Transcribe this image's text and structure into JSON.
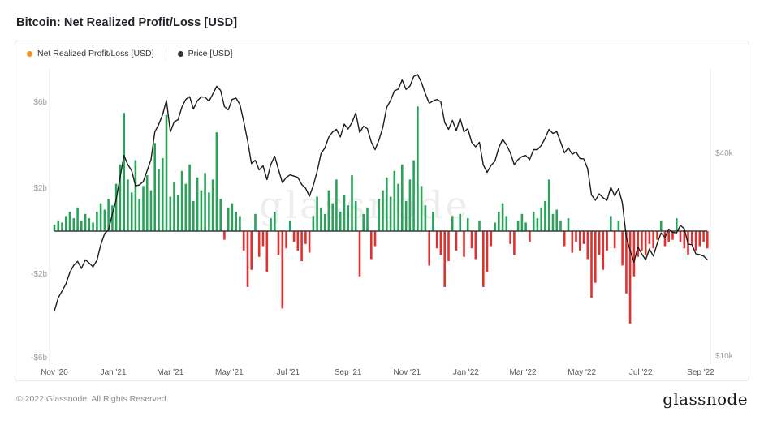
{
  "header": {
    "title": "Bitcoin: Net Realized Profit/Loss [USD]"
  },
  "legend": {
    "items": [
      {
        "label": "Net Realized Profit/Loss [USD]",
        "color": "#f7931a"
      },
      {
        "label": "Price [USD]",
        "color": "#333333"
      }
    ]
  },
  "watermark": "glassnode",
  "footer": {
    "copyright": "© 2022 Glassnode. All Rights Reserved.",
    "brand": "glassnode"
  },
  "chart_data": {
    "type": "mixed",
    "title": "Bitcoin: Net Realized Profit/Loss [USD]",
    "grid": false,
    "zero_line": true,
    "legend_position": "top-left",
    "start_date": "2020-11-01",
    "interval_days": 4,
    "left_axis": {
      "label": "Net Realized Profit/Loss",
      "unit": "billions USD",
      "ticks": [
        {
          "label": "$6b",
          "value": 6
        },
        {
          "label": "$2b",
          "value": 2
        },
        {
          "label": "-$2b",
          "value": -2
        },
        {
          "label": "-$6b",
          "value": -6
        }
      ]
    },
    "right_axis": {
      "label": "Price",
      "unit": "USD",
      "scale": "log",
      "ticks": [
        {
          "label": "$40k",
          "value": 40000
        },
        {
          "label": "$10k",
          "value": 10000
        }
      ]
    },
    "x_axis": {
      "ticks": [
        {
          "label": "Nov '20",
          "day": 0
        },
        {
          "label": "Jan '21",
          "day": 61
        },
        {
          "label": "Mar '21",
          "day": 120
        },
        {
          "label": "May '21",
          "day": 181
        },
        {
          "label": "Jul '21",
          "day": 242
        },
        {
          "label": "Sep '21",
          "day": 304
        },
        {
          "label": "Nov '21",
          "day": 365
        },
        {
          "label": "Jan '22",
          "day": 426
        },
        {
          "label": "Mar '22",
          "day": 485
        },
        {
          "label": "May '22",
          "day": 546
        },
        {
          "label": "Jul '22",
          "day": 607
        },
        {
          "label": "Sep '22",
          "day": 669
        }
      ]
    },
    "series": [
      {
        "name": "Net Realized Profit/Loss [USD]",
        "type": "bar",
        "axis": "left",
        "unit": "USD billions",
        "color_positive": "#2aa35a",
        "color_negative": "#e03131",
        "values": [
          0.3,
          0.5,
          0.4,
          0.7,
          0.9,
          0.6,
          1.1,
          0.5,
          0.8,
          0.6,
          0.4,
          0.9,
          1.3,
          1.0,
          1.5,
          1.2,
          2.2,
          3.1,
          5.5,
          2.4,
          1.8,
          3.3,
          1.5,
          2.1,
          2.6,
          1.9,
          4.1,
          2.9,
          3.4,
          5.4,
          1.6,
          2.3,
          1.7,
          2.8,
          2.2,
          3.1,
          1.4,
          2.5,
          1.9,
          2.7,
          1.8,
          2.4,
          4.6,
          1.5,
          -0.4,
          1.1,
          1.3,
          0.9,
          0.7,
          -0.9,
          -2.6,
          -1.8,
          0.8,
          -1.2,
          -0.7,
          -1.9,
          0.6,
          0.9,
          -1.1,
          -3.6,
          -0.8,
          0.5,
          -0.5,
          -0.9,
          -1.4,
          -0.6,
          -1.0,
          0.7,
          1.6,
          1.1,
          0.8,
          1.9,
          1.3,
          2.4,
          0.9,
          1.7,
          1.2,
          2.6,
          1.4,
          -2.1,
          0.8,
          1.1,
          -1.3,
          -0.7,
          1.5,
          1.9,
          2.5,
          1.6,
          2.8,
          2.2,
          3.1,
          1.4,
          2.4,
          3.3,
          5.8,
          2.1,
          1.2,
          -1.6,
          0.9,
          -0.8,
          -1.1,
          -2.6,
          -1.4,
          0.7,
          -0.9,
          0.8,
          -1.2,
          0.6,
          -0.8,
          -1.3,
          0.5,
          -2.6,
          -1.9,
          -0.7,
          0.4,
          0.9,
          1.3,
          0.7,
          -0.6,
          -1.1,
          0.5,
          0.8,
          0.4,
          -0.5,
          0.9,
          0.6,
          1.1,
          1.4,
          2.4,
          0.8,
          1.0,
          0.5,
          -0.7,
          0.6,
          -1.0,
          -0.5,
          -0.9,
          -0.6,
          -1.3,
          -3.1,
          -2.4,
          -1.1,
          -1.8,
          -0.9,
          0.7,
          -0.8,
          0.5,
          -1.6,
          -2.9,
          -4.3,
          -2.1,
          -1.2,
          -0.9,
          -1.1,
          -0.6,
          -0.8,
          -0.4,
          0.5,
          -0.7,
          -0.5,
          -0.4,
          0.6,
          -0.5,
          -0.8,
          -1.1,
          -0.6,
          -0.9,
          -0.7,
          -0.5,
          -0.8
        ]
      },
      {
        "name": "Price [USD]",
        "type": "line",
        "axis": "right",
        "scale": "log",
        "unit": "USD",
        "color": "#1c1c1c",
        "values": [
          13600,
          14900,
          15600,
          16400,
          17700,
          18600,
          19100,
          18200,
          19300,
          18900,
          18400,
          19250,
          21400,
          23100,
          23700,
          26400,
          29100,
          33900,
          39400,
          37000,
          35500,
          32000,
          32200,
          33000,
          35500,
          38300,
          46300,
          48700,
          52100,
          57400,
          46300,
          49600,
          50300,
          54900,
          57800,
          58900,
          54100,
          57300,
          58800,
          58700,
          57100,
          59900,
          63200,
          61500,
          55000,
          53800,
          57800,
          58300,
          55900,
          49700,
          43500,
          37300,
          38100,
          35700,
          36700,
          33400,
          37000,
          39200,
          35800,
          32700,
          33900,
          34500,
          34200,
          33900,
          32300,
          31500,
          29800,
          32100,
          35300,
          39900,
          41500,
          44600,
          46300,
          47100,
          44700,
          48800,
          47200,
          49300,
          52700,
          46100,
          48100,
          47300,
          43200,
          41000,
          43800,
          47700,
          54700,
          57400,
          61300,
          62000,
          66000,
          61900,
          63300,
          67600,
          68500,
          64900,
          60100,
          56300,
          57200,
          57800,
          56900,
          49400,
          47100,
          50100,
          46700,
          50800,
          46300,
          47300,
          43100,
          41800,
          43100,
          36900,
          35100,
          36800,
          37900,
          41500,
          44000,
          42400,
          40100,
          37000,
          38300,
          39100,
          39400,
          38300,
          41000,
          41000,
          42200,
          44300,
          47100,
          45800,
          46400,
          43200,
          40100,
          41500,
          39700,
          40400,
          38600,
          38500,
          36000,
          30100,
          29000,
          30300,
          29500,
          29000,
          31700,
          29900,
          31400,
          28400,
          22500,
          20600,
          19000,
          21100,
          20100,
          19300,
          20800,
          19800,
          21600,
          23200,
          22500,
          23800,
          23300,
          23200,
          24400,
          23900,
          21500,
          21400,
          20100,
          20000,
          19800,
          19300
        ]
      }
    ]
  }
}
